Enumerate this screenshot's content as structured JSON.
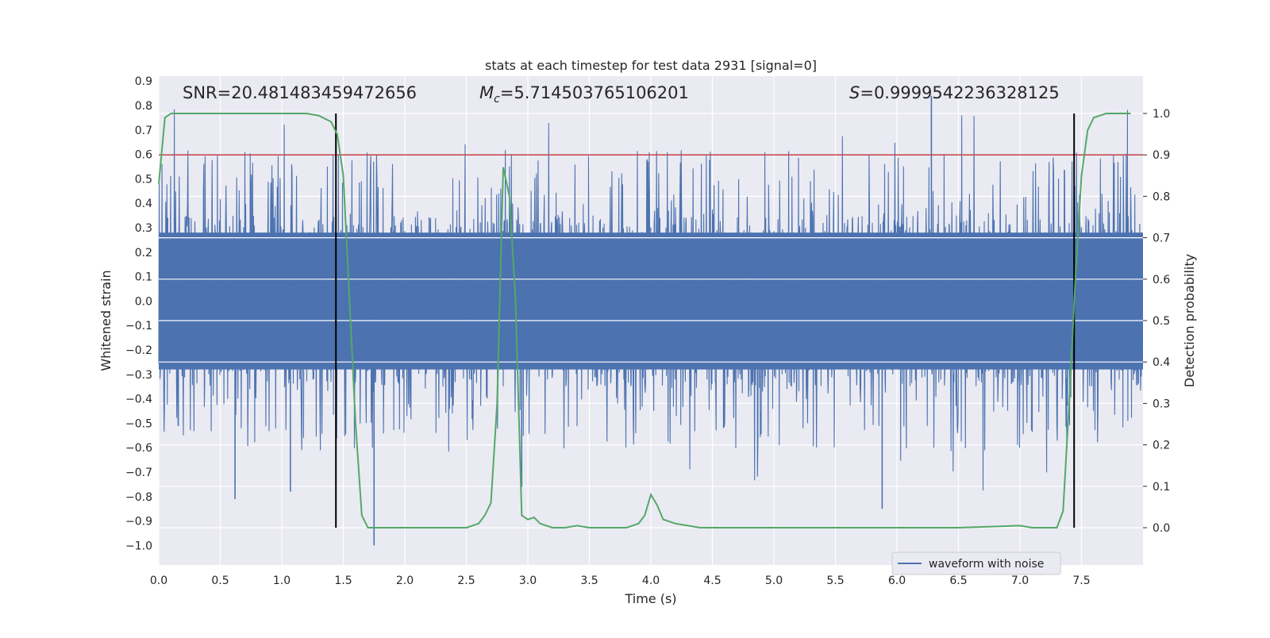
{
  "chart_data": {
    "type": "line",
    "title": "stats at each timestep for test data 2931 [signal=0]",
    "xlabel": "Time (s)",
    "ylabel_left": "Whitened strain",
    "ylabel_right": "Detection probability",
    "xlim": [
      0,
      8
    ],
    "ylim_left": [
      -1.08,
      0.92
    ],
    "ylim_right": [
      -0.09,
      1.09
    ],
    "x_ticks": [
      "0.0",
      "0.5",
      "1.0",
      "1.5",
      "2.0",
      "2.5",
      "3.0",
      "3.5",
      "4.0",
      "4.5",
      "5.0",
      "5.5",
      "6.0",
      "6.5",
      "7.0",
      "7.5"
    ],
    "y_ticks_left": [
      "0.9",
      "0.8",
      "0.7",
      "0.6",
      "0.5",
      "0.4",
      "0.3",
      "0.2",
      "0.1",
      "0.0",
      "−0.1",
      "−0.2",
      "−0.3",
      "−0.4",
      "−0.5",
      "−0.6",
      "−0.7",
      "−0.8",
      "−0.9",
      "−1.0"
    ],
    "y_ticks_right": [
      "1.0",
      "0.9",
      "0.8",
      "0.7",
      "0.6",
      "0.5",
      "0.4",
      "0.3",
      "0.2",
      "0.1",
      "0.0"
    ],
    "annotations": {
      "snr": "SNR=20.481483459472656",
      "mc_symbol": "M",
      "mc_sub": "c",
      "mc_value": "=5.714503765106201",
      "s_symbol": "S",
      "s_value": "=0.9999542236328125"
    },
    "legend": {
      "label": "waveform with noise",
      "placement": "lower-right"
    },
    "threshold": {
      "value": 0.9,
      "axis": "right",
      "color": "#c44e52"
    },
    "vertical_markers": [
      1.44,
      7.44
    ],
    "waveform": {
      "name": "waveform with noise",
      "color": "#4c72b0",
      "samples": 8192,
      "duration_s": 8,
      "typical_band": [
        -0.28,
        0.28
      ],
      "peak_max": 0.84,
      "peak_min": -1.0
    },
    "probability": {
      "color": "#55a868",
      "x": [
        0.0,
        0.05,
        0.1,
        0.3,
        0.5,
        0.8,
        1.0,
        1.2,
        1.3,
        1.4,
        1.45,
        1.5,
        1.55,
        1.6,
        1.65,
        1.7,
        1.75,
        1.8,
        1.9,
        2.0,
        2.2,
        2.3,
        2.4,
        2.5,
        2.6,
        2.65,
        2.7,
        2.75,
        2.8,
        2.85,
        2.9,
        2.95,
        3.0,
        3.05,
        3.1,
        3.2,
        3.3,
        3.4,
        3.5,
        3.6,
        3.7,
        3.8,
        3.9,
        3.95,
        4.0,
        4.05,
        4.1,
        4.2,
        4.3,
        4.4,
        4.6,
        4.8,
        5.0,
        5.5,
        6.0,
        6.5,
        7.0,
        7.1,
        7.2,
        7.3,
        7.35,
        7.4,
        7.45,
        7.5,
        7.55,
        7.6,
        7.7,
        7.8,
        7.9
      ],
      "y": [
        0.83,
        0.99,
        1.0,
        1.0,
        1.0,
        1.0,
        1.0,
        1.0,
        0.995,
        0.98,
        0.95,
        0.85,
        0.55,
        0.25,
        0.03,
        0.0,
        0.0,
        0.0,
        0.0,
        0.0,
        0.0,
        0.0,
        0.0,
        0.0,
        0.01,
        0.03,
        0.06,
        0.3,
        0.87,
        0.8,
        0.55,
        0.03,
        0.02,
        0.025,
        0.01,
        0.0,
        0.0,
        0.005,
        0.0,
        0.0,
        0.0,
        0.0,
        0.01,
        0.03,
        0.08,
        0.055,
        0.02,
        0.01,
        0.005,
        0.0,
        0.0,
        0.0,
        0.0,
        0.0,
        0.0,
        0.0,
        0.005,
        0.0,
        0.0,
        0.0,
        0.04,
        0.3,
        0.6,
        0.85,
        0.96,
        0.99,
        1.0,
        1.0,
        1.0
      ]
    }
  }
}
